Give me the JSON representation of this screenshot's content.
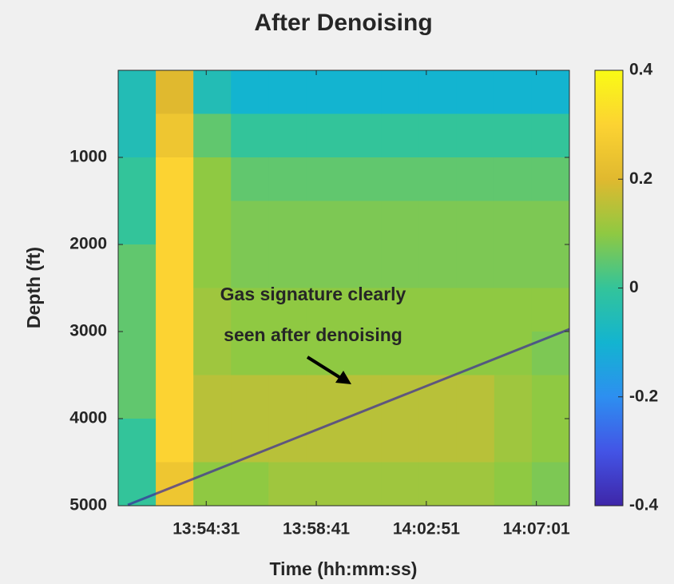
{
  "chart_data": {
    "type": "heatmap",
    "title": "After Denoising",
    "xlabel": "Time (hh:mm:ss)",
    "ylabel": "Depth (ft)",
    "xlim": [
      49871,
      50896
    ],
    "xticks": [
      {
        "value": 50071,
        "label": "13:54:31"
      },
      {
        "value": 50321,
        "label": "13:58:41"
      },
      {
        "value": 50571,
        "label": "14:02:51"
      },
      {
        "value": 50821,
        "label": "14:07:01"
      }
    ],
    "ylim": [
      0,
      5000
    ],
    "yreverse": true,
    "yticks": [
      1000,
      2000,
      3000,
      4000,
      5000
    ],
    "clim": [
      -0.4,
      0.4
    ],
    "cticks": [
      -0.4,
      -0.2,
      0,
      0.2,
      0.4
    ],
    "colormap": [
      "#3e26a8",
      "#4354e6",
      "#2d8ff0",
      "#13b4d0",
      "#33c49a",
      "#8fc942",
      "#e0b92f",
      "#fcd332",
      "#f9fb15"
    ],
    "z": [
      [
        -0.05,
        0.2,
        -0.05,
        -0.1,
        -0.1,
        -0.1,
        -0.1,
        -0.1,
        -0.1,
        -0.1,
        -0.1,
        -0.1
      ],
      [
        -0.05,
        0.25,
        0.05,
        0.0,
        0.0,
        0.0,
        0.0,
        0.0,
        0.0,
        0.0,
        0.0,
        0.0
      ],
      [
        0.0,
        0.3,
        0.1,
        0.05,
        0.05,
        0.05,
        0.05,
        0.05,
        0.05,
        0.05,
        0.05,
        0.05
      ],
      [
        0.0,
        0.3,
        0.1,
        0.08,
        0.08,
        0.08,
        0.08,
        0.08,
        0.08,
        0.08,
        0.08,
        0.08
      ],
      [
        0.05,
        0.3,
        0.1,
        0.08,
        0.08,
        0.08,
        0.08,
        0.08,
        0.08,
        0.08,
        0.08,
        0.08
      ],
      [
        0.05,
        0.3,
        0.12,
        0.1,
        0.1,
        0.1,
        0.1,
        0.1,
        0.1,
        0.1,
        0.1,
        0.1
      ],
      [
        0.05,
        0.3,
        0.12,
        0.1,
        0.1,
        0.1,
        0.1,
        0.1,
        0.1,
        0.1,
        0.1,
        0.08
      ],
      [
        0.05,
        0.3,
        0.15,
        0.15,
        0.15,
        0.15,
        0.15,
        0.15,
        0.15,
        0.15,
        0.12,
        0.1
      ],
      [
        0.0,
        0.3,
        0.15,
        0.15,
        0.15,
        0.15,
        0.15,
        0.15,
        0.15,
        0.15,
        0.12,
        0.1
      ],
      [
        0.0,
        0.25,
        0.1,
        0.1,
        0.12,
        0.12,
        0.12,
        0.12,
        0.12,
        0.12,
        0.1,
        0.08
      ]
    ],
    "annotation": [
      "Gas signature clearly",
      "seen after denoising"
    ]
  }
}
